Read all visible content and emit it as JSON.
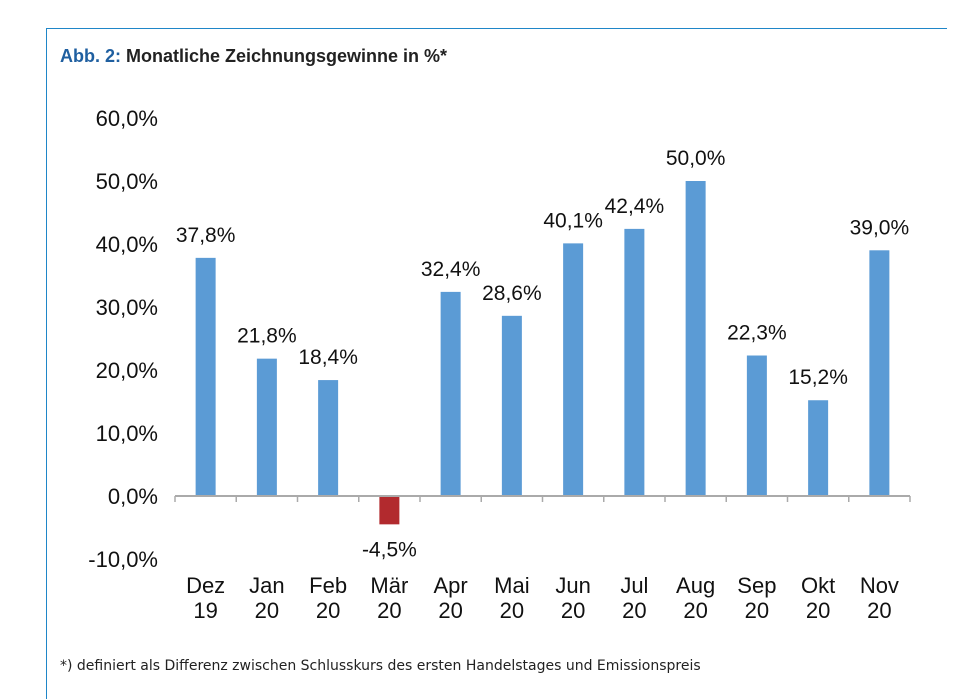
{
  "title": {
    "prefix": "Abb. 2:",
    "text": "Monatliche Zeichnungsgewinne in %*"
  },
  "footnote": "*) definiert als Differenz zwischen Schlusskurs des ersten Handelstages und Emissionspreis",
  "colors": {
    "positive_bar": "#5b9bd5",
    "negative_bar": "#b22a2e",
    "frame": "#1f86c8",
    "title_prefix": "#1f5fa0"
  },
  "chart_data": {
    "type": "bar",
    "title": "Monatliche Zeichnungsgewinne in %*",
    "categories": [
      [
        "Dez",
        "19"
      ],
      [
        "Jan",
        "20"
      ],
      [
        "Feb",
        "20"
      ],
      [
        "Mär",
        "20"
      ],
      [
        "Apr",
        "20"
      ],
      [
        "Mai",
        "20"
      ],
      [
        "Jun",
        "20"
      ],
      [
        "Jul",
        "20"
      ],
      [
        "Aug",
        "20"
      ],
      [
        "Sep",
        "20"
      ],
      [
        "Okt",
        "20"
      ],
      [
        "Nov",
        "20"
      ]
    ],
    "values": [
      37.8,
      21.8,
      18.4,
      -4.5,
      32.4,
      28.6,
      40.1,
      42.4,
      50.0,
      22.3,
      15.2,
      39.0
    ],
    "data_labels": [
      "37,8%",
      "21,8%",
      "18,4%",
      "-4,5%",
      "32,4%",
      "28,6%",
      "40,1%",
      "42,4%",
      "50,0%",
      "22,3%",
      "15,2%",
      "39,0%"
    ],
    "yticks": [
      60,
      50,
      40,
      30,
      20,
      10,
      0,
      -10
    ],
    "ytick_labels": [
      "60,0%",
      "50,0%",
      "40,0%",
      "30,0%",
      "20,0%",
      "10,0%",
      "0,0%",
      "-10,0%"
    ],
    "ylim": [
      -10,
      60
    ],
    "grid": false,
    "legend": false
  }
}
